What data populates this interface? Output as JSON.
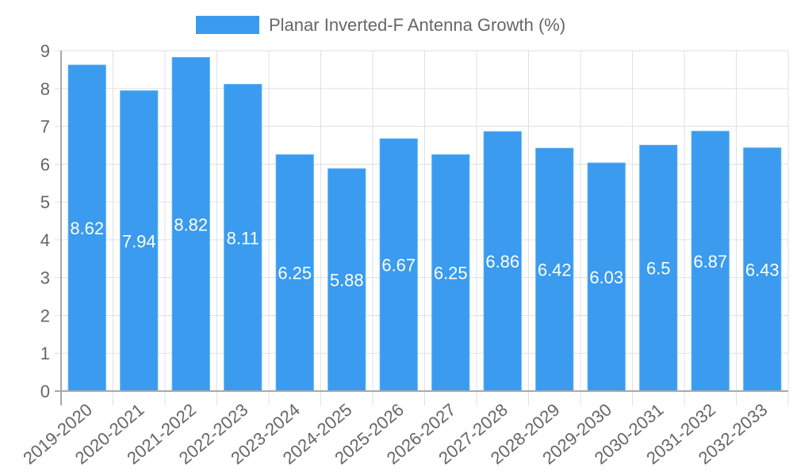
{
  "chart_data": {
    "type": "bar",
    "title": "",
    "legend": {
      "position": "top",
      "entries": [
        {
          "label": "Planar Inverted-F Antenna Growth (%)",
          "color": "#3a9bef"
        }
      ]
    },
    "xlabel": "",
    "ylabel": "",
    "ylim": [
      0,
      9
    ],
    "yticks": [
      "0",
      "1",
      "2",
      "3",
      "4",
      "5",
      "6",
      "7",
      "8",
      "9"
    ],
    "grid": true,
    "categories": [
      "2019-2020",
      "2020-2021",
      "2021-2022",
      "2022-2023",
      "2023-2024",
      "2024-2025",
      "2025-2026",
      "2026-2027",
      "2027-2028",
      "2028-2029",
      "2029-2030",
      "2030-2031",
      "2031-2032",
      "2032-2033"
    ],
    "series": [
      {
        "name": "Planar Inverted-F Antenna Growth (%)",
        "color": "#3a9bef",
        "values": [
          8.62,
          7.94,
          8.82,
          8.11,
          6.25,
          5.88,
          6.67,
          6.25,
          6.86,
          6.42,
          6.03,
          6.5,
          6.87,
          6.43
        ],
        "labels": [
          "8.62",
          "7.94",
          "8.82",
          "8.11",
          "6.25",
          "5.88",
          "6.67",
          "6.25",
          "6.86",
          "6.42",
          "6.03",
          "6.5",
          "6.87",
          "6.43"
        ]
      }
    ]
  }
}
